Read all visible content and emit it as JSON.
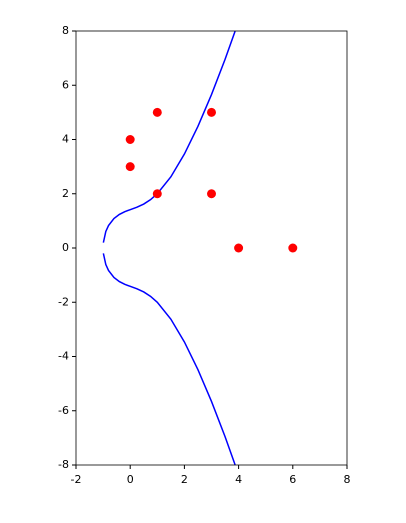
{
  "chart_data": {
    "type": "line",
    "xlim": [
      -2,
      8
    ],
    "ylim": [
      -8,
      8
    ],
    "xticks": [
      -2,
      0,
      2,
      4,
      6,
      8
    ],
    "yticks": [
      -8,
      -6,
      -4,
      -2,
      0,
      2,
      4,
      6,
      8
    ],
    "grid": false,
    "series": [
      {
        "type": "line",
        "color": "#0000ff",
        "x": [
          3.87,
          3.5,
          3,
          2.5,
          2,
          1.5,
          1,
          0.75,
          0.5,
          0.25,
          0,
          -0.2,
          -0.4,
          -0.6,
          -0.8,
          -0.9,
          -0.99,
          null,
          -0.99,
          -0.9,
          -0.8,
          -0.6,
          -0.4,
          -0.2,
          0,
          0.25,
          0.5,
          0.75,
          1,
          1.5,
          2,
          2.5,
          3,
          3.5,
          3.87
        ],
        "values": [
          7.989,
          6.955,
          5.657,
          4.486,
          3.464,
          2.622,
          2,
          1.781,
          1.62,
          1.505,
          1.414,
          1.339,
          1.239,
          1.088,
          0.829,
          0.609,
          0.199,
          null,
          -0.199,
          -0.609,
          -0.829,
          -1.088,
          -1.239,
          -1.339,
          -1.414,
          -1.505,
          -1.62,
          -1.781,
          -2,
          -2.622,
          -3.464,
          -4.486,
          -5.657,
          -6.955,
          -7.989
        ]
      },
      {
        "type": "scatter",
        "color": "#ff0000",
        "x": [
          1,
          3,
          0,
          0,
          1,
          3,
          4,
          6
        ],
        "values": [
          5,
          5,
          4,
          3,
          2,
          2,
          0,
          0
        ]
      }
    ]
  }
}
